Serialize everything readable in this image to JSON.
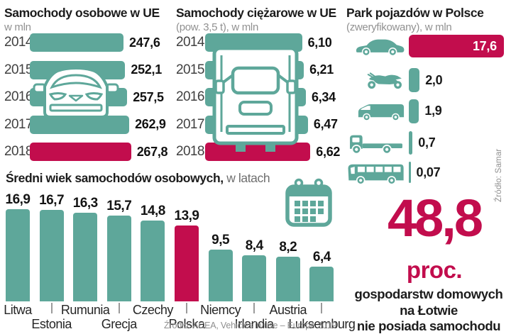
{
  "colors": {
    "teal": "#5EA79A",
    "red": "#C20D4D",
    "text": "#1c1c1c",
    "muted": "#8f8f8f"
  },
  "eu_cars": {
    "title": "Samochody osobowe w UE",
    "subtitle": "w mln",
    "values": [
      "247,6",
      "252,1",
      "257,5",
      "262,9",
      "267,8"
    ]
  },
  "eu_trucks": {
    "title": "Samochody ciężarowe w UE",
    "subtitle": "(pow. 3,5 t), w mln",
    "values": [
      "6,10",
      "6,21",
      "6,34",
      "6,47",
      "6,62"
    ]
  },
  "poland": {
    "title": "Park pojazdów w Polsce",
    "subtitle": "(zweryfikowany), w mln",
    "icons": [
      "car-icon",
      "motorcycle-icon",
      "van-icon",
      "truck-icon",
      "bus-icon"
    ],
    "values": [
      "17,6",
      "2,0",
      "1,9",
      "0,7",
      "0,07"
    ],
    "source": "Źródło: Samar"
  },
  "age": {
    "title_bold": "Średni wiek samochodów osobowych,",
    "title_light": "w latach",
    "values": [
      "16,9",
      "16,7",
      "16,3",
      "15,7",
      "14,8",
      "13,9",
      "9,5",
      "8,4",
      "8,2",
      "6,4"
    ],
    "source": "Źródło: ACEA, Vehicles in use – Europe 2019"
  },
  "fact": {
    "number": "48,8",
    "unit": "proc.",
    "line1": "gospodarstw domowych",
    "line2": "na Łotwie",
    "line3": "nie posiada samochodu"
  },
  "chart_data": [
    {
      "id": "eu_cars",
      "type": "bar",
      "orientation": "horizontal",
      "title": "Samochody osobowe w UE",
      "unit": "mln",
      "categories": [
        "2014",
        "2015",
        "2016",
        "2017",
        "2018"
      ],
      "values": [
        247.6,
        252.1,
        257.5,
        262.9,
        267.8
      ],
      "highlight_index": 4,
      "legend": false,
      "grid": false
    },
    {
      "id": "eu_trucks",
      "type": "bar",
      "orientation": "horizontal",
      "title": "Samochody ciężarowe w UE (pow. 3,5 t)",
      "unit": "mln",
      "categories": [
        "2014",
        "2015",
        "2016",
        "2017",
        "2018"
      ],
      "values": [
        6.1,
        6.21,
        6.34,
        6.47,
        6.62
      ],
      "highlight_index": 4,
      "legend": false,
      "grid": false
    },
    {
      "id": "poland_fleet",
      "type": "bar",
      "orientation": "horizontal",
      "title": "Park pojazdów w Polsce (zweryfikowany)",
      "unit": "mln",
      "categories": [
        "car",
        "motorcycle",
        "van",
        "truck",
        "bus"
      ],
      "values": [
        17.6,
        2.0,
        1.9,
        0.7,
        0.07
      ],
      "highlight_index": 0,
      "legend": false,
      "grid": false
    },
    {
      "id": "avg_age",
      "type": "bar",
      "orientation": "vertical",
      "title": "Średni wiek samochodów osobowych, w latach",
      "unit": "lata",
      "categories": [
        "Litwa",
        "Estonia",
        "Rumunia",
        "Grecja",
        "Czechy",
        "Polska",
        "Niemcy",
        "Irlandia",
        "Austria",
        "Luksemburg"
      ],
      "values": [
        16.9,
        16.7,
        16.3,
        15.7,
        14.8,
        13.9,
        9.5,
        8.4,
        8.2,
        6.4
      ],
      "highlight_index": 5,
      "ylim": [
        0,
        18
      ],
      "legend": false,
      "grid": false
    }
  ]
}
